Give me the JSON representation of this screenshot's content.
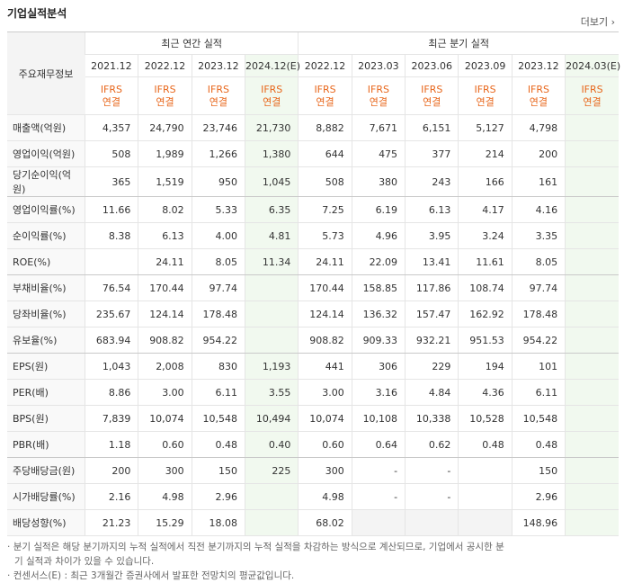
{
  "header": {
    "title": "기업실적분석",
    "more": "더보기"
  },
  "table": {
    "corner": "주요재무정보",
    "groups": [
      "최근 연간 실적",
      "최근 분기 실적"
    ],
    "group_spans": [
      4,
      6
    ],
    "columns": [
      {
        "period": "2021.12",
        "standard": "IFRS",
        "scope": "연결",
        "estimate": false
      },
      {
        "period": "2022.12",
        "standard": "IFRS",
        "scope": "연결",
        "estimate": false
      },
      {
        "period": "2023.12",
        "standard": "IFRS",
        "scope": "연결",
        "estimate": false
      },
      {
        "period": "2024.12(E)",
        "standard": "IFRS",
        "scope": "연결",
        "estimate": true
      },
      {
        "period": "2022.12",
        "standard": "IFRS",
        "scope": "연결",
        "estimate": false
      },
      {
        "period": "2023.03",
        "standard": "IFRS",
        "scope": "연결",
        "estimate": false
      },
      {
        "period": "2023.06",
        "standard": "IFRS",
        "scope": "연결",
        "estimate": false
      },
      {
        "period": "2023.09",
        "standard": "IFRS",
        "scope": "연결",
        "estimate": false
      },
      {
        "period": "2023.12",
        "standard": "IFRS",
        "scope": "연결",
        "estimate": false
      },
      {
        "period": "2024.03(E)",
        "standard": "IFRS",
        "scope": "연결",
        "estimate": true
      }
    ],
    "group_ends": [
      2,
      5,
      8,
      12
    ],
    "rows": [
      {
        "label": "매출액(억원)",
        "cells": [
          "4,357",
          "24,790",
          "23,746",
          "21,730",
          "8,882",
          "7,671",
          "6,151",
          "5,127",
          "4,798",
          null
        ]
      },
      {
        "label": "영업이익(억원)",
        "cells": [
          "508",
          "1,989",
          "1,266",
          "1,380",
          "644",
          "475",
          "377",
          "214",
          "200",
          null
        ]
      },
      {
        "label": "당기순이익(억원)",
        "cells": [
          "365",
          "1,519",
          "950",
          "1,045",
          "508",
          "380",
          "243",
          "166",
          "161",
          null
        ]
      },
      {
        "label": "영업이익률(%)",
        "cells": [
          "11.66",
          "8.02",
          "5.33",
          "6.35",
          "7.25",
          "6.19",
          "6.13",
          "4.17",
          "4.16",
          null
        ]
      },
      {
        "label": "순이익률(%)",
        "cells": [
          "8.38",
          "6.13",
          "4.00",
          "4.81",
          "5.73",
          "4.96",
          "3.95",
          "3.24",
          "3.35",
          null
        ]
      },
      {
        "label": "ROE(%)",
        "cells": [
          null,
          "24.11",
          "8.05",
          "11.34",
          "24.11",
          "22.09",
          "13.41",
          "11.61",
          "8.05",
          null
        ]
      },
      {
        "label": "부채비율(%)",
        "cells": [
          "76.54",
          "170.44",
          "97.74",
          null,
          "170.44",
          "158.85",
          "117.86",
          "108.74",
          "97.74",
          null
        ]
      },
      {
        "label": "당좌비율(%)",
        "cells": [
          "235.67",
          "124.14",
          "178.48",
          null,
          "124.14",
          "136.32",
          "157.47",
          "162.92",
          "178.48",
          null
        ]
      },
      {
        "label": "유보율(%)",
        "cells": [
          "683.94",
          "908.82",
          "954.22",
          null,
          "908.82",
          "909.33",
          "932.21",
          "951.53",
          "954.22",
          null
        ]
      },
      {
        "label": "EPS(원)",
        "cells": [
          "1,043",
          "2,008",
          "830",
          "1,193",
          "441",
          "306",
          "229",
          "194",
          "101",
          null
        ]
      },
      {
        "label": "PER(배)",
        "cells": [
          "8.86",
          "3.00",
          "6.11",
          "3.55",
          "3.00",
          "3.16",
          "4.84",
          "4.36",
          "6.11",
          null
        ]
      },
      {
        "label": "BPS(원)",
        "cells": [
          "7,839",
          "10,074",
          "10,548",
          "10,494",
          "10,074",
          "10,108",
          "10,338",
          "10,528",
          "10,548",
          null
        ]
      },
      {
        "label": "PBR(배)",
        "cells": [
          "1.18",
          "0.60",
          "0.48",
          "0.40",
          "0.60",
          "0.64",
          "0.62",
          "0.48",
          "0.48",
          null
        ]
      },
      {
        "label": "주당배당금(원)",
        "cells": [
          "200",
          "300",
          "150",
          "225",
          "300",
          "-",
          "-",
          null,
          "150",
          null
        ]
      },
      {
        "label": "시가배당률(%)",
        "cells": [
          "2.16",
          "4.98",
          "2.96",
          null,
          "4.98",
          "-",
          "-",
          null,
          "2.96",
          null
        ]
      },
      {
        "label": "배당성향(%)",
        "cells": [
          "21.23",
          "15.29",
          "18.08",
          null,
          "68.02",
          null,
          null,
          null,
          "148.96",
          null
        ]
      }
    ]
  },
  "notes": [
    "분기 실적은 해당 분기까지의 누적 실적에서 직전 분기까지의 누적 실적을 차감하는 방식으로 계산되므로, 기업에서 공시한 분기 실적과 차이가 있을 수 있습니다.",
    "컨센서스(E) : 최근 3개월간 증권사에서 발표한 전망치의 평균값입니다."
  ]
}
